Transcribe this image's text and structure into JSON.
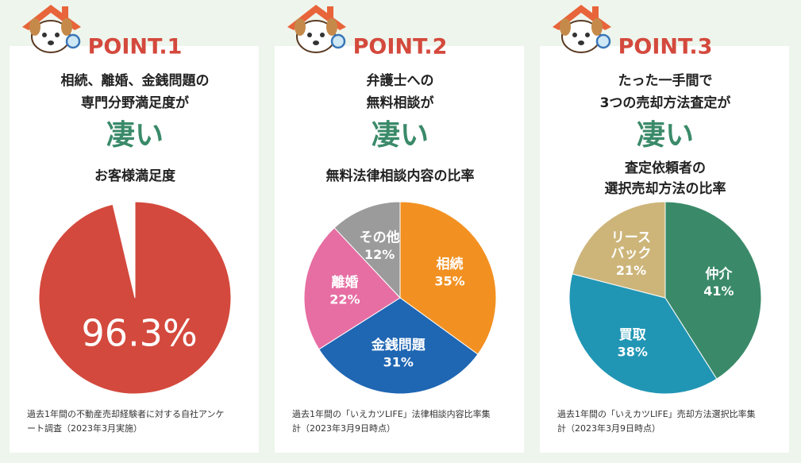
{
  "chart_data": [
    {
      "type": "pie",
      "point": "POINT.1",
      "heading": [
        "相続、離婚、金銭問題の",
        "専門分野満足度が"
      ],
      "emphasis": "凄い",
      "title": [
        "お客様満足度"
      ],
      "categories": [
        null,
        null
      ],
      "values": [
        96.3,
        3.7
      ],
      "value_labels": [
        "96.3%",
        null
      ],
      "colors": [
        "#d4493d",
        "#ffffff"
      ],
      "footnote": [
        "過去1年間の不動産売却経験者に対する自社アンケ",
        "ート調査（2023年3月実施）"
      ]
    },
    {
      "type": "pie",
      "point": "POINT.2",
      "heading": [
        "弁護士への",
        "無料相談が"
      ],
      "emphasis": "凄い",
      "title": [
        "無料法律相談内容の比率"
      ],
      "categories": [
        "相続",
        "金銭問題",
        "離婚",
        "その他"
      ],
      "values": [
        35,
        31,
        22,
        12
      ],
      "value_labels": [
        "35%",
        "31%",
        "22%",
        "12%"
      ],
      "colors": [
        "#f29121",
        "#1f66b3",
        "#e66ea3",
        "#9b9b9b"
      ],
      "footnote": [
        "過去1年間の「いえカツLIFE」法律相談内容比率集",
        "計（2023年3月9日時点）"
      ]
    },
    {
      "type": "pie",
      "point": "POINT.3",
      "heading": [
        "たった一手間で",
        "3つの売却方法査定が"
      ],
      "emphasis": "凄い",
      "title": [
        "査定依頼者の",
        "選択売却方法の比率"
      ],
      "categories": [
        "仲介",
        "買取",
        "リース\nバック"
      ],
      "values": [
        41,
        38,
        21
      ],
      "value_labels": [
        "41%",
        "38%",
        "21%"
      ],
      "colors": [
        "#3a8a69",
        "#2196b4",
        "#cdb57a"
      ],
      "footnote": [
        "過去1年間の「いえカツLIFE」売却方法選択比率集",
        "計（2023年3月9日時点）"
      ]
    }
  ]
}
